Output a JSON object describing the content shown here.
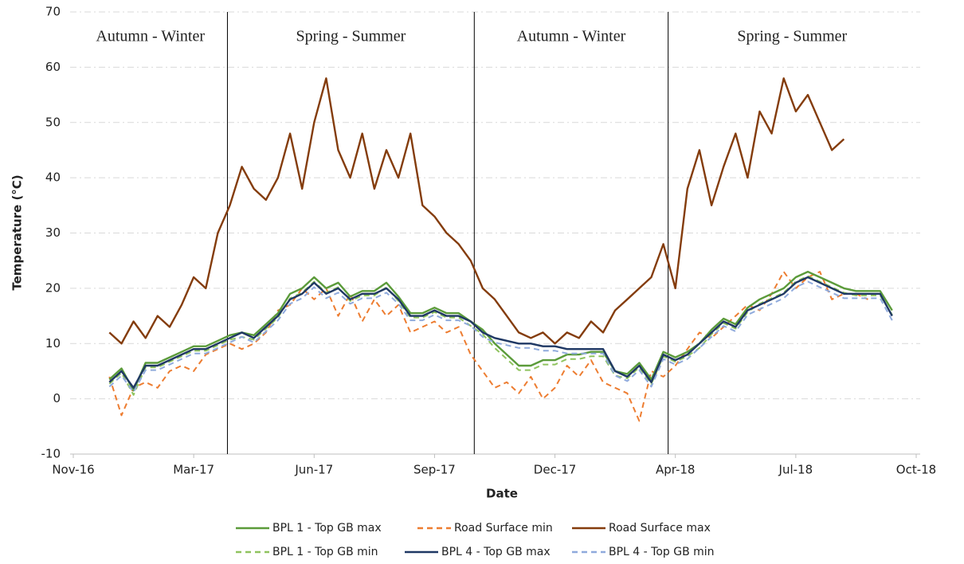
{
  "chart_data": {
    "type": "line",
    "xlabel": "Date",
    "ylabel": "Temperature (°C)",
    "xlim": [
      42699,
      43399
    ],
    "xticks": [
      {
        "value": 42699,
        "label": "Nov-16"
      },
      {
        "value": 42799,
        "label": "Mar-17"
      },
      {
        "value": 42899,
        "label": "Jun-17"
      },
      {
        "value": 42999,
        "label": "Sep-17"
      },
      {
        "value": 43099,
        "label": "Dec-17"
      },
      {
        "value": 43199,
        "label": "Apr-18"
      },
      {
        "value": 43299,
        "label": "Jul-18"
      },
      {
        "value": 43399,
        "label": "Oct-18"
      }
    ],
    "ylim": [
      -10,
      70
    ],
    "yticks": [
      -10,
      0,
      10,
      20,
      30,
      40,
      50,
      60,
      70
    ],
    "grid": true,
    "season_dividers": [
      42827,
      43032,
      43193
    ],
    "season_labels": [
      "Autumn - Winter",
      "Spring - Summer",
      "Autumn - Winter",
      "Spring - Summer"
    ],
    "x": [
      42729,
      42739,
      42749,
      42759,
      42769,
      42779,
      42789,
      42799,
      42809,
      42819,
      42829,
      42839,
      42849,
      42859,
      42869,
      42879,
      42889,
      42899,
      42909,
      42919,
      42929,
      42939,
      42949,
      42959,
      42969,
      42979,
      42989,
      42999,
      43009,
      43019,
      43029,
      43039,
      43049,
      43059,
      43069,
      43079,
      43089,
      43099,
      43109,
      43119,
      43129,
      43139,
      43149,
      43159,
      43169,
      43179,
      43189,
      43199,
      43209,
      43219,
      43229,
      43239,
      43249,
      43259,
      43269,
      43279,
      43289,
      43299,
      43309,
      43319,
      43329,
      43339,
      43349,
      43359,
      43369,
      43379
    ],
    "legend": "bottom",
    "series": [
      {
        "name": "BPL 1 - Top GB max",
        "color": "#5b9b3a",
        "dashed": false,
        "values": [
          3.5,
          5.5,
          1.5,
          6.5,
          6.5,
          7.5,
          8.5,
          9.5,
          9.5,
          10.5,
          11.5,
          12,
          11.5,
          13.5,
          15.5,
          19,
          20,
          22,
          20,
          21,
          18.5,
          19.5,
          19.5,
          21,
          18.5,
          15.5,
          15.5,
          16.5,
          15.5,
          15.5,
          14,
          12.5,
          10,
          8,
          6,
          6,
          7,
          7,
          8,
          8,
          8.5,
          8.5,
          5,
          4.5,
          6.5,
          3.5,
          8.5,
          7.5,
          8.5,
          10,
          12.5,
          14.5,
          13.5,
          16.5,
          18,
          19,
          20,
          22,
          23,
          22,
          21,
          20,
          19.5,
          19.5,
          19.5,
          16
        ]
      },
      {
        "name": "Road Surface min",
        "color": "#ed7d31",
        "dashed": true,
        "values": [
          4,
          -3,
          2,
          3,
          2,
          5,
          6,
          5,
          8,
          9,
          10,
          9,
          10,
          12,
          16,
          17,
          20,
          18,
          20,
          15,
          19,
          14,
          18,
          15,
          17,
          12,
          13,
          14,
          12,
          13,
          8,
          5,
          2,
          3,
          1,
          4,
          0,
          2,
          6,
          4,
          7,
          3,
          2,
          1,
          -4,
          5,
          4,
          6,
          9,
          12,
          11,
          13,
          15,
          17,
          16,
          19,
          23,
          20,
          22,
          23,
          18,
          19,
          19,
          18,
          null,
          null
        ]
      },
      {
        "name": "Road Surface max",
        "color": "#843c0c",
        "dashed": false,
        "values": [
          12,
          10,
          14,
          11,
          15,
          13,
          17,
          22,
          20,
          30,
          35,
          42,
          38,
          36,
          40,
          48,
          38,
          50,
          58,
          45,
          40,
          48,
          38,
          45,
          40,
          48,
          35,
          33,
          30,
          28,
          25,
          20,
          18,
          15,
          12,
          11,
          12,
          10,
          12,
          11,
          14,
          12,
          16,
          18,
          20,
          22,
          28,
          20,
          38,
          45,
          35,
          42,
          48,
          40,
          52,
          48,
          58,
          52,
          55,
          50,
          45,
          47,
          null,
          null,
          null,
          null
        ]
      },
      {
        "name": "BPL 1 - Top GB min",
        "color": "#8fc35e",
        "dashed": true,
        "values": [
          2.7,
          4.7,
          0.7,
          5.7,
          5.7,
          6.7,
          7.7,
          8.7,
          8.7,
          9.7,
          10.7,
          11.2,
          10.7,
          12.7,
          14.7,
          18.2,
          19.2,
          21.2,
          19.2,
          20.2,
          17.7,
          18.7,
          18.7,
          20.2,
          17.7,
          14.7,
          14.7,
          15.7,
          14.7,
          14.7,
          13.2,
          11.7,
          9.2,
          7.2,
          5.2,
          5.2,
          6.2,
          6.2,
          7.2,
          7.2,
          7.7,
          7.7,
          4.2,
          3.7,
          5.7,
          2.7,
          7.7,
          6.7,
          7.7,
          9.2,
          11.7,
          13.7,
          12.7,
          15.7,
          17.2,
          18.2,
          19.2,
          21.2,
          22.2,
          21.2,
          20.2,
          19.2,
          18.7,
          18.7,
          18.7,
          15.2
        ]
      },
      {
        "name": "BPL 4 - Top GB max",
        "color": "#1f3864",
        "dashed": false,
        "values": [
          3,
          5,
          2,
          6,
          6,
          7,
          8,
          9,
          9,
          10,
          11,
          12,
          11,
          13,
          15,
          18,
          19,
          21,
          19,
          20,
          18,
          19,
          19,
          20,
          18,
          15,
          15,
          16,
          15,
          15,
          14,
          12,
          11,
          10.5,
          10,
          10,
          9.5,
          9.5,
          9,
          9,
          9,
          9,
          5,
          4,
          6,
          3,
          8,
          7,
          8,
          10,
          12,
          14,
          13,
          16,
          17,
          18,
          19,
          21,
          22,
          21,
          20,
          19,
          19,
          19,
          19,
          15
        ]
      },
      {
        "name": "BPL 4 - Top GB min",
        "color": "#8faadc",
        "dashed": true,
        "values": [
          2.2,
          4.2,
          1.2,
          5.2,
          5.2,
          6.2,
          7.2,
          8.2,
          8.2,
          9.2,
          10.2,
          11.2,
          10.2,
          12.2,
          14.2,
          17.2,
          18.2,
          20.2,
          18.2,
          19.2,
          17.2,
          18.2,
          18.2,
          19.2,
          17.2,
          14.2,
          14.2,
          15.2,
          14.2,
          14.2,
          13.2,
          11.2,
          10.2,
          9.7,
          9.2,
          9.2,
          8.7,
          8.7,
          8.2,
          8.2,
          8.2,
          8.2,
          4.2,
          3.2,
          5.2,
          2.2,
          7.2,
          6.2,
          7.2,
          9.2,
          11.2,
          13.2,
          12.2,
          15.2,
          16.2,
          17.2,
          18.2,
          20.2,
          21.2,
          20.2,
          19.2,
          18.2,
          18.2,
          18.2,
          18.2,
          14.2
        ]
      }
    ]
  }
}
